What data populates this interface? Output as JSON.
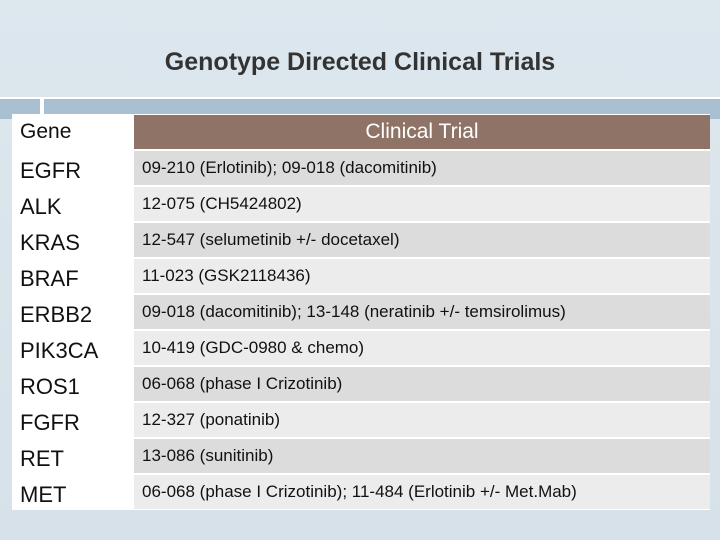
{
  "slide": {
    "title": "Genotype Directed Clinical Trials"
  },
  "table": {
    "headers": {
      "gene": "Gene",
      "trial": "Clinical Trial"
    },
    "rows": [
      {
        "gene": "EGFR",
        "trial": "09-210 (Erlotinib); 09-018 (dacomitinib)"
      },
      {
        "gene": "ALK",
        "trial": "12-075 (CH5424802)"
      },
      {
        "gene": "KRAS",
        "trial": "12-547 (selumetinib +/- docetaxel)"
      },
      {
        "gene": "BRAF",
        "trial": "11-023 (GSK2118436)"
      },
      {
        "gene": "ERBB2",
        "trial": "09-018 (dacomitinib); 13-148 (neratinib +/- temsirolimus)"
      },
      {
        "gene": "PIK3CA",
        "trial": "10-419 (GDC-0980 & chemo)"
      },
      {
        "gene": "ROS1",
        "trial": "06-068 (phase I Crizotinib)"
      },
      {
        "gene": "FGFR",
        "trial": "12-327 (ponatinib)"
      },
      {
        "gene": "RET",
        "trial": "13-086 (sunitinib)"
      },
      {
        "gene": "MET",
        "trial": "06-068 (phase I Crizotinib); 11-484 (Erlotinib +/- Met.Mab)"
      }
    ]
  },
  "colors": {
    "header_fill": "#8f7367",
    "row_shade_dark": "#dcdcdc",
    "row_shade_light": "#ececec",
    "accent_bar": "#a9c0d2",
    "background": "#d9e4ec"
  }
}
